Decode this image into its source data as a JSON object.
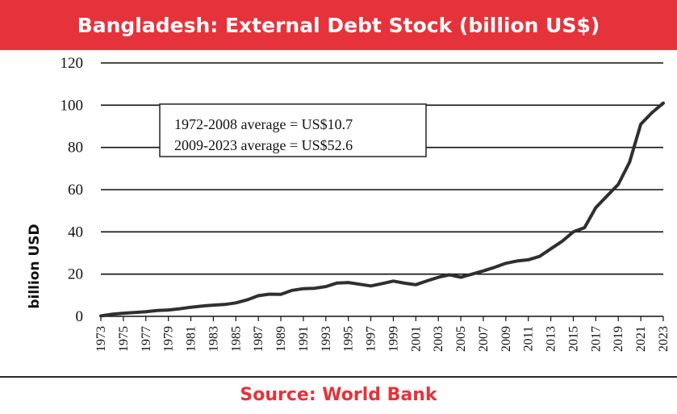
{
  "header": {
    "title": "Bangladesh: External Debt Stock (billion US$)"
  },
  "footer": {
    "source": "Source: World Bank"
  },
  "colors": {
    "title_bar": "#e6323a",
    "source_text": "#e6323a",
    "line": "#2f2f2f",
    "grid": "#111111"
  },
  "chart_data": {
    "type": "line",
    "ylabel": "billion USD",
    "ylim": [
      0,
      120
    ],
    "yticks": [
      0,
      20,
      40,
      60,
      80,
      100,
      120
    ],
    "xlim": [
      1973,
      2023
    ],
    "xticks": [
      1973,
      1975,
      1977,
      1979,
      1981,
      1983,
      1985,
      1987,
      1989,
      1991,
      1993,
      1995,
      1997,
      1999,
      2001,
      2003,
      2005,
      2007,
      2009,
      2011,
      2013,
      2015,
      2017,
      2019,
      2021,
      2023
    ],
    "grid": "horizontal",
    "annotations": [
      "1972-2008 average = US$10.7",
      "2009-2023 average = US$52.6"
    ],
    "x": [
      1973,
      1974,
      1975,
      1976,
      1977,
      1978,
      1979,
      1980,
      1981,
      1982,
      1983,
      1984,
      1985,
      1986,
      1987,
      1988,
      1989,
      1990,
      1991,
      1992,
      1993,
      1994,
      1995,
      1996,
      1997,
      1998,
      1999,
      2000,
      2001,
      2002,
      2003,
      2004,
      2005,
      2006,
      2007,
      2008,
      2009,
      2010,
      2011,
      2012,
      2013,
      2014,
      2015,
      2016,
      2017,
      2018,
      2019,
      2020,
      2021,
      2022,
      2023
    ],
    "values": [
      0.2,
      1.0,
      1.5,
      1.8,
      2.2,
      2.8,
      3.0,
      3.6,
      4.3,
      4.9,
      5.3,
      5.6,
      6.4,
      7.8,
      9.8,
      10.5,
      10.4,
      12.3,
      13.1,
      13.3,
      14.1,
      15.8,
      16.0,
      15.2,
      14.4,
      15.5,
      16.7,
      15.7,
      15.0,
      16.8,
      18.5,
      19.7,
      18.5,
      20.0,
      21.5,
      23.2,
      25.1,
      26.2,
      26.8,
      28.4,
      32.0,
      35.5,
      40.0,
      42.0,
      51.5,
      57.0,
      62.5,
      73.0,
      91.0,
      96.5,
      101.0
    ]
  }
}
